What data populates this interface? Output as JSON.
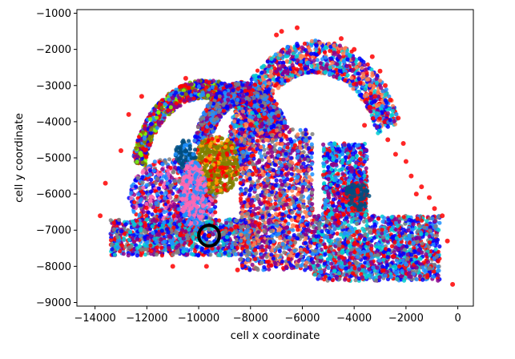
{
  "chart_data": {
    "type": "scatter",
    "xlabel": "cell x coordinate",
    "ylabel": "cell y coordinate",
    "xlim": [
      -14700,
      600
    ],
    "ylim": [
      -9100,
      -900
    ],
    "x_ticks": [
      -14000,
      -12000,
      -10000,
      -8000,
      -6000,
      -4000,
      -2000,
      0
    ],
    "x_tick_labels": [
      "−14000",
      "−12000",
      "−10000",
      "−8000",
      "−6000",
      "−4000",
      "−2000",
      "0"
    ],
    "y_ticks": [
      -1000,
      -2000,
      -3000,
      -4000,
      -5000,
      -6000,
      -7000,
      -8000,
      -9000
    ],
    "y_tick_labels": [
      "−1000",
      "−2000",
      "−3000",
      "−4000",
      "−5000",
      "−6000",
      "−7000",
      "−8000",
      "−9000"
    ],
    "grid": false,
    "colors": [
      "#ff0000",
      "#0000ff",
      "#1e90ff",
      "#8b008b",
      "#00ced1",
      "#808000",
      "#ff69b4",
      "#ffa500",
      "#808080",
      "#7fff00",
      "#004d80",
      "#ff7f50",
      "#4169e1",
      "#9400d3",
      "#228b22",
      "#b22222"
    ],
    "highlight": {
      "x": -9600,
      "y": -7150,
      "radius": 400,
      "color": "#000000"
    },
    "regions": [
      {
        "name": "outer arc",
        "kind": "arc",
        "cx": -9700,
        "cy": -5600,
        "rx": 2650,
        "ry": 2500,
        "a0": 190,
        "a1": 330,
        "width": 500,
        "colors": [
          0,
          5,
          9,
          1,
          2,
          3
        ]
      },
      {
        "name": "large upper arc",
        "kind": "arc",
        "cx": -5500,
        "cy": -5200,
        "rx": 3000,
        "ry": 3000,
        "a0": 180,
        "a1": 340,
        "width": 900,
        "colors": [
          0,
          1,
          3,
          2,
          11,
          4
        ]
      },
      {
        "name": "inner arc",
        "kind": "arc",
        "cx": -8300,
        "cy": -5400,
        "rx": 1700,
        "ry": 2200,
        "a0": 200,
        "a1": 330,
        "width": 600,
        "colors": [
          1,
          2,
          0,
          8,
          3
        ]
      },
      {
        "name": "left lobe",
        "kind": "ellipse",
        "cx": -11000,
        "cy": -6200,
        "rx": 1700,
        "ry": 1200,
        "colors": [
          2,
          6,
          1,
          8,
          3,
          0
        ]
      },
      {
        "name": "central olive patch",
        "kind": "ellipse",
        "cx": -9300,
        "cy": -5200,
        "rx": 900,
        "ry": 800,
        "colors": [
          5,
          5,
          5,
          7,
          0
        ]
      },
      {
        "name": "bottom band",
        "kind": "band",
        "x0": -13400,
        "x1": -7800,
        "y0": -7700,
        "y1": -6700,
        "colors": [
          1,
          2,
          8,
          0,
          4,
          3
        ]
      },
      {
        "name": "central column",
        "kind": "band",
        "x0": -8400,
        "x1": -5600,
        "y0": -8100,
        "y1": -4200,
        "colors": [
          1,
          0,
          3,
          2,
          8,
          11
        ]
      },
      {
        "name": "right band",
        "kind": "band",
        "x0": -5600,
        "x1": -700,
        "y0": -8400,
        "y1": -6600,
        "colors": [
          1,
          0,
          4,
          2,
          3,
          8
        ]
      },
      {
        "name": "right upper arm",
        "kind": "band",
        "x0": -5200,
        "x1": -3500,
        "y0": -6600,
        "y1": -4600,
        "colors": [
          1,
          0,
          3,
          2,
          4
        ]
      },
      {
        "name": "navy cluster right",
        "kind": "ellipse",
        "cx": -3900,
        "cy": -6100,
        "rx": 500,
        "ry": 400,
        "colors": [
          10,
          10,
          0
        ]
      },
      {
        "name": "navy cluster left",
        "kind": "ellipse",
        "cx": -10500,
        "cy": -4900,
        "rx": 400,
        "ry": 400,
        "colors": [
          10,
          10,
          2
        ]
      },
      {
        "name": "pink patch",
        "kind": "ellipse",
        "cx": -10200,
        "cy": -6000,
        "rx": 500,
        "ry": 900,
        "colors": [
          6,
          6,
          2
        ]
      }
    ],
    "outliers": [
      [
        -3300,
        -2200
      ],
      [
        -3000,
        -2600
      ],
      [
        -2800,
        -3000
      ],
      [
        -2600,
        -3400
      ],
      [
        -2300,
        -3900
      ],
      [
        -2100,
        -4600
      ],
      [
        -2000,
        -5100
      ],
      [
        -1800,
        -5500
      ],
      [
        -1400,
        -5800
      ],
      [
        -1100,
        -6100
      ],
      [
        -600,
        -6600
      ],
      [
        -400,
        -7300
      ],
      [
        -4000,
        -2000
      ],
      [
        -4500,
        -1700
      ],
      [
        -6200,
        -1400
      ],
      [
        -7000,
        -1600
      ],
      [
        -6800,
        -1500
      ],
      [
        -3600,
        -4100
      ],
      [
        -3400,
        -3600
      ],
      [
        -3200,
        -3300
      ],
      [
        -2700,
        -4500
      ],
      [
        -2400,
        -4900
      ],
      [
        -1600,
        -6000
      ],
      [
        -900,
        -6400
      ],
      [
        -200,
        -8500
      ],
      [
        -10500,
        -2800
      ],
      [
        -12700,
        -3800
      ],
      [
        -13000,
        -4800
      ],
      [
        -13600,
        -5700
      ],
      [
        -13800,
        -6600
      ],
      [
        -11000,
        -8000
      ],
      [
        -8500,
        -8100
      ],
      [
        -12200,
        -3300
      ],
      [
        -9700,
        -8000
      ]
    ]
  }
}
